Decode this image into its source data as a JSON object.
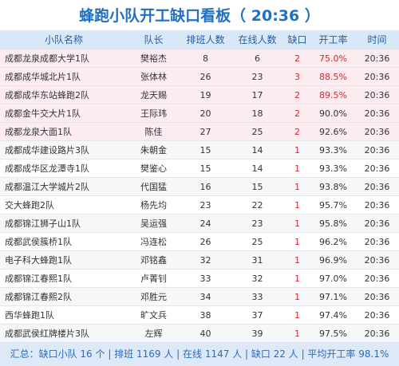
{
  "header": {
    "title": "蜂跑小队开工缺口看板（ 20:36 ）"
  },
  "table": {
    "columns": [
      "小队名称",
      "队长",
      "排班人数",
      "在线人数",
      "缺口",
      "开工率",
      "时间"
    ],
    "rows": [
      [
        "成都龙泉成都大学1队",
        "樊裕杰",
        8,
        6,
        2,
        "75.0%",
        "20:36"
      ],
      [
        "成都成华城北片1队",
        "张体林",
        26,
        23,
        3,
        "88.5%",
        "20:36"
      ],
      [
        "成都成华东站蜂跑2队",
        "龙天赐",
        19,
        17,
        2,
        "89.5%",
        "20:36"
      ],
      [
        "成都金牛交大片1队",
        "王际玮",
        20,
        18,
        2,
        "90.0%",
        "20:36"
      ],
      [
        "成都龙泉大面1队",
        "陈佳",
        27,
        25,
        2,
        "92.6%",
        "20:36"
      ],
      [
        "成都成华建设路片3队",
        "朱朝金",
        15,
        14,
        1,
        "93.3%",
        "20:36"
      ],
      [
        "成都成华区龙潭寺1队",
        "樊鉴心",
        15,
        14,
        1,
        "93.3%",
        "20:36"
      ],
      [
        "成都温江大学城片2队",
        "代国猛",
        16,
        15,
        1,
        "93.8%",
        "20:36"
      ],
      [
        "交大蜂跑2队",
        "杨先均",
        23,
        22,
        1,
        "95.7%",
        "20:36"
      ],
      [
        "成都锦江狮子山1队",
        "吴运强",
        24,
        23,
        1,
        "95.8%",
        "20:36"
      ],
      [
        "成都武侯簇桥1队",
        "冯连松",
        26,
        25,
        1,
        "96.2%",
        "20:36"
      ],
      [
        "电子科大蜂跑1队",
        "邓铭鑫",
        32,
        31,
        1,
        "96.9%",
        "20:36"
      ],
      [
        "成都锦江春熙1队",
        "卢菁钊",
        33,
        32,
        1,
        "97.0%",
        "20:36"
      ],
      [
        "成都锦江春熙2队",
        "邓胜元",
        34,
        33,
        1,
        "97.1%",
        "20:36"
      ],
      [
        "西华蜂跑1队",
        "旷文兵",
        38,
        37,
        1,
        "97.4%",
        "20:36"
      ],
      [
        "成都武侯红牌楼片3队",
        "左辉",
        40,
        39,
        1,
        "97.5%",
        "20:36"
      ]
    ]
  },
  "footer": {
    "summary": "汇总：缺口小队 16 个 | 排班 1169 人 | 在线 1147 人 | 缺口 22 人 | 平均开工率 98.1%"
  }
}
